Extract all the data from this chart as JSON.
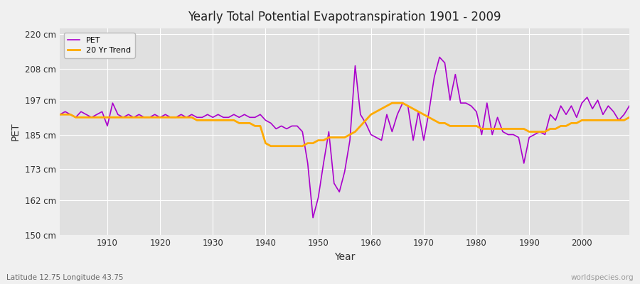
{
  "title": "Yearly Total Potential Evapotranspiration 1901 - 2009",
  "xlabel": "Year",
  "ylabel": "PET",
  "bottom_left": "Latitude 12.75 Longitude 43.75",
  "bottom_right": "worldspecies.org",
  "pet_color": "#aa00cc",
  "trend_color": "#ffaa00",
  "fig_bg_color": "#f0f0f0",
  "plot_bg_color": "#e0e0e0",
  "ylim": [
    150,
    222
  ],
  "yticks": [
    150,
    162,
    173,
    185,
    197,
    208,
    220
  ],
  "ytick_labels": [
    "150 cm",
    "162 cm",
    "173 cm",
    "185 cm",
    "197 cm",
    "208 cm",
    "220 cm"
  ],
  "years": [
    1901,
    1902,
    1903,
    1904,
    1905,
    1906,
    1907,
    1908,
    1909,
    1910,
    1911,
    1912,
    1913,
    1914,
    1915,
    1916,
    1917,
    1918,
    1919,
    1920,
    1921,
    1922,
    1923,
    1924,
    1925,
    1926,
    1927,
    1928,
    1929,
    1930,
    1931,
    1932,
    1933,
    1934,
    1935,
    1936,
    1937,
    1938,
    1939,
    1940,
    1941,
    1942,
    1943,
    1944,
    1945,
    1946,
    1947,
    1948,
    1949,
    1950,
    1951,
    1952,
    1953,
    1954,
    1955,
    1956,
    1957,
    1958,
    1959,
    1960,
    1961,
    1962,
    1963,
    1964,
    1965,
    1966,
    1967,
    1968,
    1969,
    1970,
    1971,
    1972,
    1973,
    1974,
    1975,
    1976,
    1977,
    1978,
    1979,
    1980,
    1981,
    1982,
    1983,
    1984,
    1985,
    1986,
    1987,
    1988,
    1989,
    1990,
    1991,
    1992,
    1993,
    1994,
    1995,
    1996,
    1997,
    1998,
    1999,
    2000,
    2001,
    2002,
    2003,
    2004,
    2005,
    2006,
    2007,
    2008,
    2009
  ],
  "pet": [
    192,
    193,
    192,
    191,
    193,
    192,
    191,
    192,
    193,
    188,
    196,
    192,
    191,
    192,
    191,
    192,
    191,
    191,
    192,
    191,
    192,
    191,
    191,
    192,
    191,
    192,
    191,
    191,
    192,
    191,
    192,
    191,
    191,
    192,
    191,
    192,
    191,
    191,
    192,
    190,
    189,
    187,
    188,
    187,
    188,
    188,
    186,
    175,
    156,
    163,
    175,
    186,
    168,
    165,
    172,
    183,
    209,
    192,
    189,
    185,
    184,
    183,
    192,
    186,
    192,
    196,
    195,
    183,
    193,
    183,
    193,
    205,
    212,
    210,
    197,
    206,
    196,
    196,
    195,
    193,
    185,
    196,
    185,
    191,
    186,
    185,
    185,
    184,
    175,
    184,
    185,
    186,
    185,
    192,
    190,
    195,
    192,
    195,
    191,
    196,
    198,
    194,
    197,
    192,
    195,
    193,
    190,
    192,
    195
  ],
  "trend": [
    192,
    192,
    192,
    191,
    191,
    191,
    191,
    191,
    191,
    191,
    191,
    191,
    191,
    191,
    191,
    191,
    191,
    191,
    191,
    191,
    191,
    191,
    191,
    191,
    191,
    191,
    190,
    190,
    190,
    190,
    190,
    190,
    190,
    190,
    189,
    189,
    189,
    188,
    188,
    182,
    181,
    181,
    181,
    181,
    181,
    181,
    181,
    182,
    182,
    183,
    183,
    184,
    184,
    184,
    184,
    185,
    186,
    188,
    190,
    192,
    193,
    194,
    195,
    196,
    196,
    196,
    195,
    194,
    193,
    192,
    191,
    190,
    189,
    189,
    188,
    188,
    188,
    188,
    188,
    188,
    187,
    187,
    187,
    187,
    187,
    187,
    187,
    187,
    187,
    186,
    186,
    186,
    186,
    187,
    187,
    188,
    188,
    189,
    189,
    190,
    190,
    190,
    190,
    190,
    190,
    190,
    190,
    190,
    191
  ]
}
